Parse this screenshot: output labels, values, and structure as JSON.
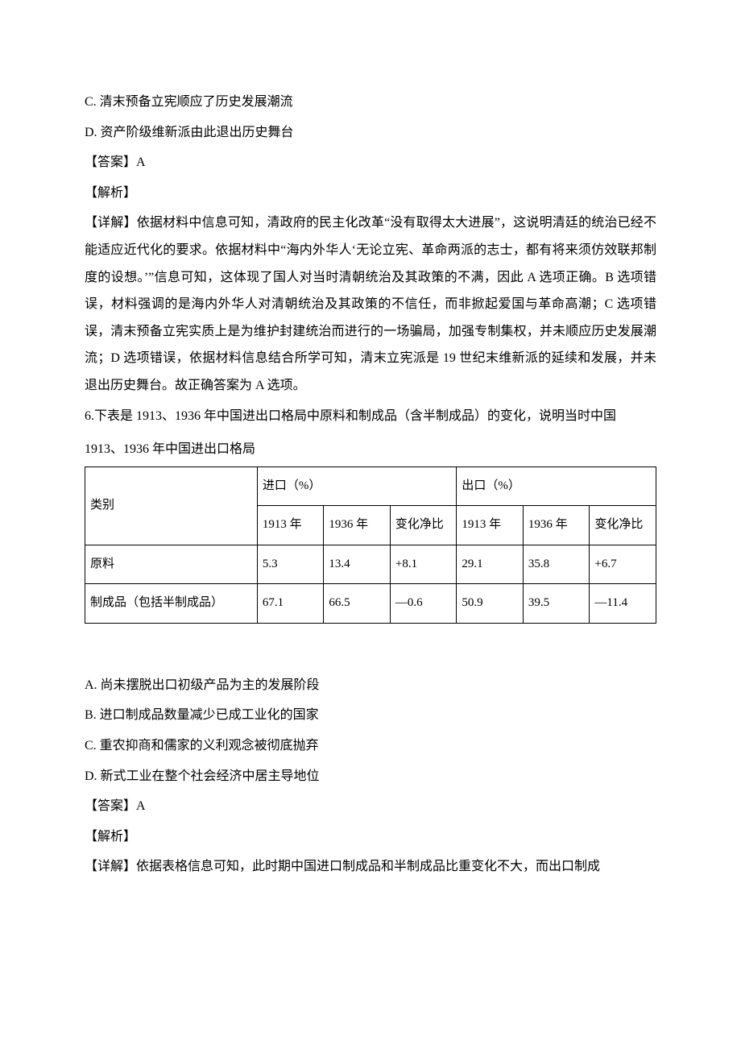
{
  "lines": {
    "optC": "C. 清末预备立宪顺应了历史发展潮流",
    "optD": "D. 资产阶级维新派由此退出历史舞台",
    "ans5": "【答案】A",
    "jiexi": "【解析】",
    "detail5": "【详解】依据材料中信息可知，清政府的民主化改革“没有取得太大进展”，这说明清廷的统治已经不能适应近代化的要求。依据材料中“海内外华人‘无论立宪、革命两派的志士，都有将来须仿效联邦制度的设想。’”信息可知，这体现了国人对当时清朝统治及其政策的不满，因此 A 选项正确。B 选项错误，材料强调的是海内外华人对清朝统治及其政策的不信任，而非掀起爱国与革命高潮；C 选项错误，清末预备立宪实质上是为维护封建统治而进行的一场骗局，加强专制集权，并未顺应历史发展潮流；D 选项错误，依据材料信息结合所学可知，清末立宪派是 19 世纪末维新派的延续和发展，并未退出历史舞台。故正确答案为 A 选项。",
    "q6a": "6.下表是 1913、1936 年中国进出口格局中原料和制成品（含半制成品）的变化，说明当时中国",
    "tableTitle": "1913、1936 年中国进出口格局",
    "optA2": "A. 尚未摆脱出口初级产品为主的发展阶段",
    "optB2": "B. 进口制成品数量减少已成工业化的国家",
    "optC2": "C. 重农抑商和儒家的义利观念被彻底抛弃",
    "optD2": "D. 新式工业在整个社会经济中居主导地位",
    "ans6": "【答案】A",
    "jiexi2": "【解析】",
    "detail6": "【详解】依据表格信息可知，此时期中国进口制成品和半制成品比重变化不大，而出口制成"
  },
  "table": {
    "headerCat": "类别",
    "headerImport": "进口（%）",
    "headerExport": "出口（%）",
    "sub": {
      "y1913": "1913 年",
      "y1936": "1936 年",
      "net": "变化净比"
    },
    "rows": [
      {
        "cat": "原料",
        "imp1913": "5.3",
        "imp1936": "13.4",
        "impNet": "+8.1",
        "exp1913": "29.1",
        "exp1936": "35.8",
        "expNet": "+6.7"
      },
      {
        "cat": "制成品（包括半制成品）",
        "imp1913": "67.1",
        "imp1936": "66.5",
        "impNet": "—0.6",
        "exp1913": "50.9",
        "exp1936": "39.5",
        "expNet": "—11.4"
      }
    ]
  }
}
